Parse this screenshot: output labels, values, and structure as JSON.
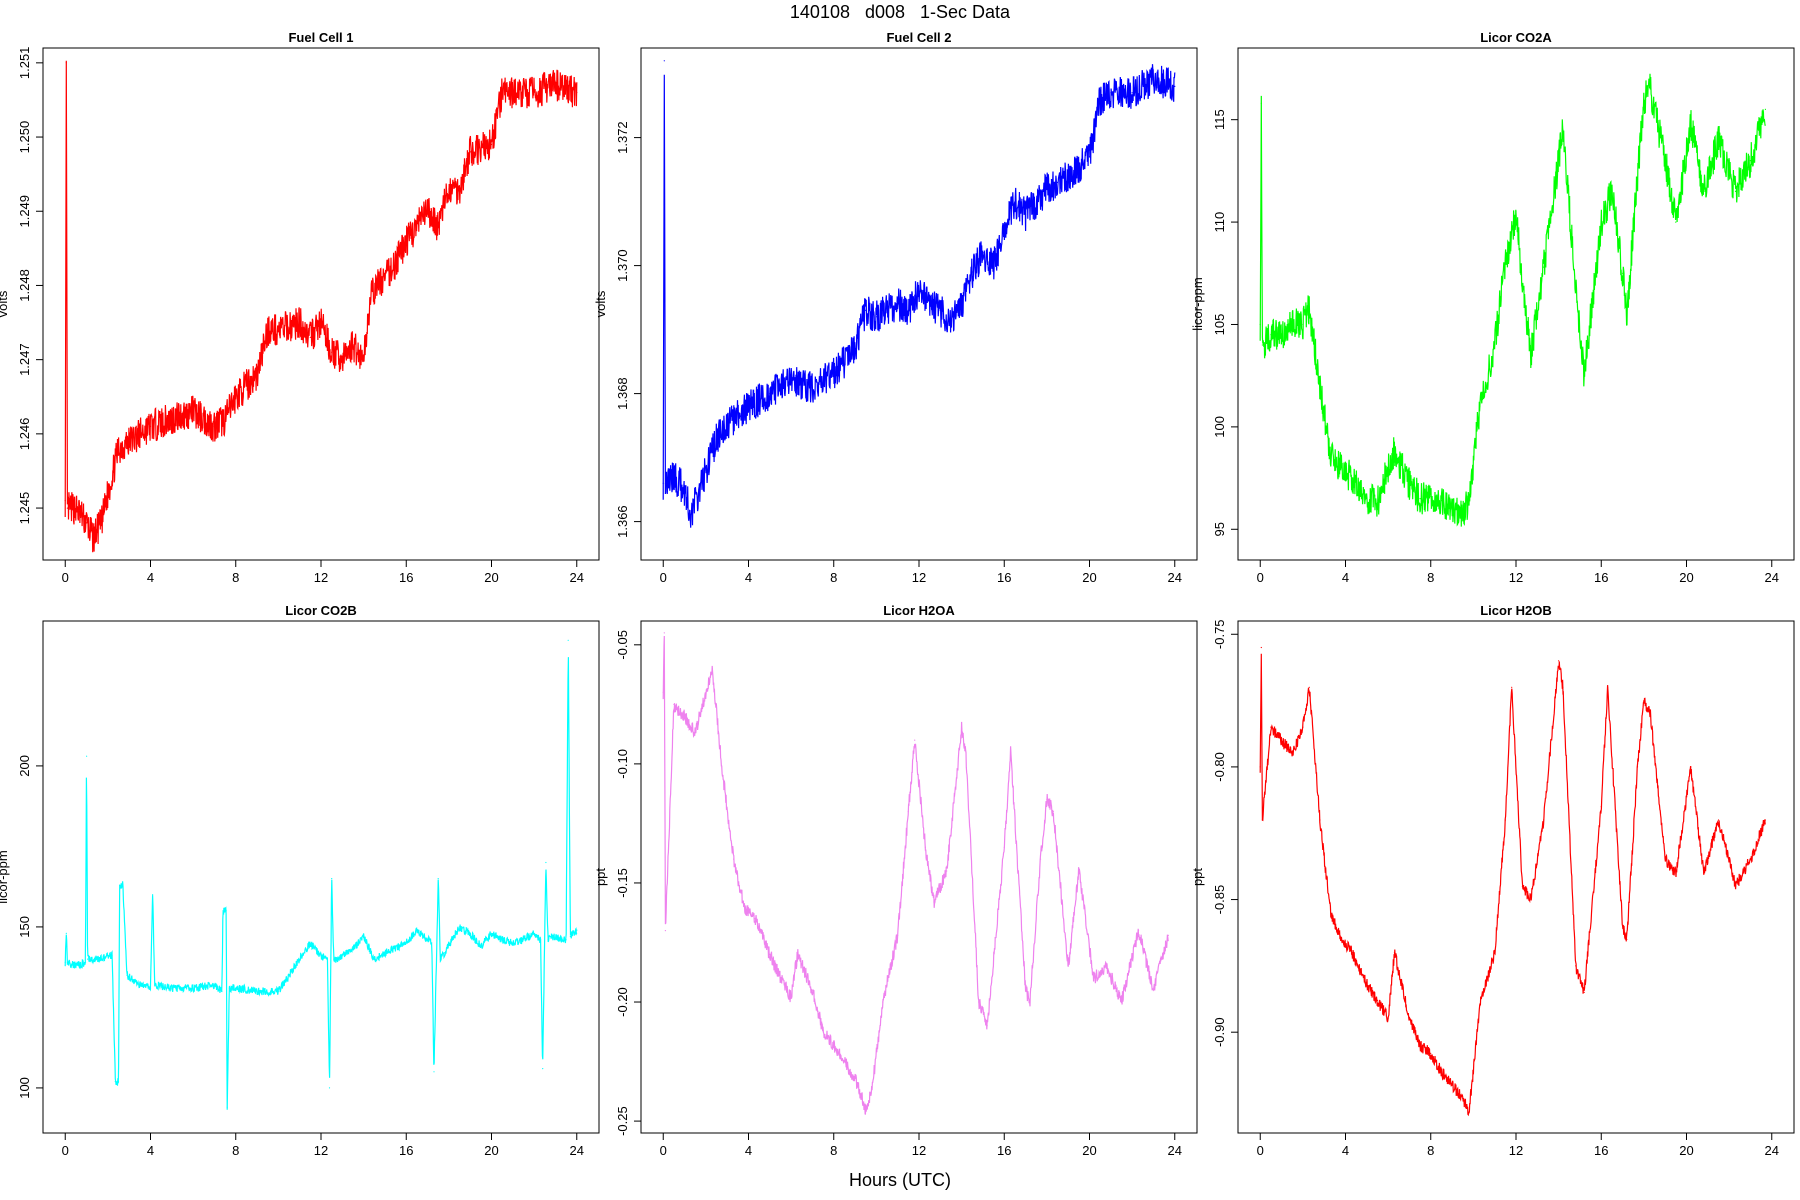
{
  "figure": {
    "title": "140108   d008   1-Sec Data",
    "xlabel": "Hours (UTC)"
  },
  "chart_data": [
    {
      "type": "line",
      "title": "Fuel Cell 1",
      "ylabel": "volts",
      "color": "#ff0000",
      "xlim": [
        0,
        24
      ],
      "ylim": [
        1.2443,
        1.2512
      ],
      "xticks": [
        0,
        4,
        8,
        12,
        16,
        20,
        24
      ],
      "yticks": [
        1.245,
        1.246,
        1.247,
        1.248,
        1.249,
        1.25,
        1.251
      ],
      "ytick_labels": [
        "1.245",
        "1.246",
        "1.247",
        "1.248",
        "1.249",
        "1.250",
        "1.251"
      ],
      "noise": 0.00022,
      "series": [
        {
          "x": [
            0,
            0.05,
            0.1,
            0.5,
            1,
            1.3,
            1.7,
            2,
            2.5,
            3,
            4,
            5,
            6,
            7,
            7.5,
            8,
            9,
            9.5,
            10,
            11,
            11.5,
            12,
            12.5,
            13,
            13.5,
            14,
            14.3,
            14.6,
            15,
            15.5,
            16,
            17,
            17.5,
            18,
            18.5,
            19,
            20,
            20.5,
            21,
            22,
            23,
            24
          ],
          "y": [
            1.2451,
            1.251,
            1.245,
            1.245,
            1.2448,
            1.2446,
            1.2448,
            1.2452,
            1.2458,
            1.2459,
            1.2461,
            1.2462,
            1.2463,
            1.2461,
            1.2462,
            1.2465,
            1.2468,
            1.2474,
            1.2474,
            1.2475,
            1.2473,
            1.2475,
            1.2471,
            1.247,
            1.2472,
            1.247,
            1.2478,
            1.248,
            1.2481,
            1.2483,
            1.2486,
            1.249,
            1.2488,
            1.2493,
            1.2493,
            1.2498,
            1.2499,
            1.2506,
            1.2506,
            1.2506,
            1.2507,
            1.2506
          ]
        }
      ]
    },
    {
      "type": "line",
      "title": "Fuel Cell 2",
      "ylabel": "volts",
      "color": "#0000ff",
      "xlim": [
        0,
        24
      ],
      "ylim": [
        1.3654,
        1.3734
      ],
      "xticks": [
        0,
        4,
        8,
        12,
        16,
        20,
        24
      ],
      "yticks": [
        1.366,
        1.368,
        1.37,
        1.372
      ],
      "ytick_labels": [
        "1.366",
        "1.368",
        "1.370",
        "1.372"
      ],
      "noise": 0.00026,
      "series": [
        {
          "x": [
            0,
            0.05,
            0.1,
            0.5,
            1,
            1.3,
            1.7,
            2,
            2.5,
            3,
            4,
            5,
            6,
            7,
            8,
            9,
            9.5,
            10,
            11,
            11.5,
            12,
            12.5,
            13,
            13.5,
            14,
            14.5,
            15,
            15.5,
            16,
            16.5,
            17,
            18,
            18.5,
            19,
            20,
            20.5,
            21,
            22,
            23,
            24
          ],
          "y": [
            1.3666,
            1.3732,
            1.3666,
            1.3667,
            1.3665,
            1.3661,
            1.3665,
            1.3668,
            1.3673,
            1.3675,
            1.3678,
            1.368,
            1.3682,
            1.3681,
            1.3683,
            1.3687,
            1.3693,
            1.3692,
            1.3694,
            1.3693,
            1.3696,
            1.3694,
            1.3693,
            1.3691,
            1.3694,
            1.3699,
            1.3702,
            1.37,
            1.3706,
            1.371,
            1.3708,
            1.3712,
            1.3713,
            1.3714,
            1.3717,
            1.3726,
            1.3727,
            1.3727,
            1.3729,
            1.3728
          ]
        }
      ]
    },
    {
      "type": "line",
      "title": "Licor CO2A",
      "ylabel": "licor-ppm",
      "color": "#00ff00",
      "xlim": [
        0,
        24
      ],
      "ylim": [
        93.5,
        118.5
      ],
      "xticks": [
        0,
        4,
        8,
        12,
        16,
        20,
        24
      ],
      "yticks": [
        95,
        100,
        105,
        110,
        115
      ],
      "ytick_labels": [
        "95",
        "100",
        "105",
        "110",
        "115"
      ],
      "noise": 0.8,
      "series": [
        {
          "x": [
            0,
            0.05,
            0.1,
            0.5,
            1,
            1.5,
            2,
            2.3,
            2.8,
            3.3,
            3.8,
            4.3,
            5,
            5.5,
            6,
            6.3,
            7,
            7.5,
            8,
            8.5,
            9,
            9.5,
            9.8,
            10.3,
            11,
            11.5,
            12,
            12.3,
            12.7,
            13.3,
            14,
            14.2,
            14.8,
            15.2,
            16,
            16.5,
            17,
            17.2,
            17.6,
            18,
            18.3,
            19,
            19.5,
            20.2,
            20.8,
            21.5,
            22.3,
            23,
            23.7
          ],
          "y": [
            105,
            115.8,
            104,
            104.5,
            104.5,
            105,
            105,
            105.8,
            102,
            98.5,
            98,
            97.5,
            96.5,
            96.3,
            98,
            98.8,
            97.2,
            96.5,
            96.6,
            96.4,
            96,
            95.6,
            96.5,
            101,
            104,
            108,
            110.5,
            107,
            103.5,
            107.8,
            113,
            114.5,
            107,
            102.5,
            110,
            111.5,
            107.5,
            105.5,
            111,
            116,
            116.5,
            113,
            110,
            114.8,
            111.5,
            114,
            111.5,
            113,
            115.5
          ]
        }
      ]
    },
    {
      "type": "line",
      "title": "Licor CO2B",
      "ylabel": "licor-ppm",
      "color": "#00ffff",
      "xlim": [
        0,
        24
      ],
      "ylim": [
        86,
        245
      ],
      "xticks": [
        0,
        4,
        8,
        12,
        16,
        20,
        24
      ],
      "yticks": [
        100,
        150,
        200
      ],
      "ytick_labels": [
        "100",
        "150",
        "200"
      ],
      "noise": 1.2,
      "series": [
        {
          "x": [
            0,
            0.05,
            0.1,
            0.5,
            0.95,
            1.0,
            1.05,
            1.5,
            2.2,
            2.35,
            2.5,
            2.55,
            2.7,
            2.9,
            3.5,
            4.0,
            4.1,
            4.2,
            5,
            6,
            7,
            7.35,
            7.4,
            7.55,
            7.6,
            7.7,
            8,
            9,
            10,
            11,
            11.5,
            12,
            12.3,
            12.4,
            12.5,
            12.6,
            12.7,
            13.5,
            14,
            14.5,
            15,
            16,
            16.5,
            17.2,
            17.3,
            17.5,
            17.6,
            17.8,
            18.5,
            19,
            19.5,
            20,
            20.5,
            21,
            21.5,
            22,
            22.3,
            22.4,
            22.55,
            22.65,
            22.8,
            23.5,
            23.6,
            23.7,
            24
          ],
          "y": [
            139,
            148,
            139,
            138,
            139,
            203,
            140,
            140,
            141,
            102,
            102,
            163,
            163,
            135,
            132,
            131,
            160,
            132,
            131,
            131,
            132,
            130,
            155,
            155,
            94,
            131,
            131,
            130,
            130,
            140,
            145,
            141,
            140,
            100,
            165,
            140,
            140,
            143,
            147,
            140,
            142,
            145,
            149,
            145,
            105,
            165,
            140,
            142,
            150,
            148,
            144,
            148,
            146,
            145,
            146,
            148,
            146,
            106,
            170,
            146,
            147,
            146,
            239,
            147,
            149
          ]
        }
      ]
    },
    {
      "type": "line",
      "title": "Licor H2OA",
      "ylabel": "ppt",
      "color": "#ee82ee",
      "xlim": [
        0,
        24
      ],
      "ylim": [
        -0.255,
        -0.04
      ],
      "xticks": [
        0,
        4,
        8,
        12,
        16,
        20,
        24
      ],
      "yticks": [
        -0.25,
        -0.2,
        -0.15,
        -0.1,
        -0.05
      ],
      "ytick_labels": [
        "-0.25",
        "-0.20",
        "-0.15",
        "-0.10",
        "-0.05"
      ],
      "noise": 0.0028,
      "series": [
        {
          "x": [
            0,
            0.05,
            0.1,
            0.5,
            1,
            1.5,
            2,
            2.3,
            2.8,
            3.3,
            3.8,
            4.3,
            5,
            5.5,
            6,
            6.3,
            7,
            7.5,
            8,
            8.5,
            9,
            9.5,
            9.8,
            10.3,
            11,
            11.5,
            11.8,
            12.3,
            12.7,
            13.3,
            14,
            14.2,
            14.8,
            15.2,
            16,
            16.3,
            17,
            17.2,
            17.7,
            18,
            18.3,
            19,
            19.5,
            20.2,
            20.8,
            21.5,
            22.3,
            23,
            23.7
          ],
          "y": [
            -0.07,
            -0.045,
            -0.17,
            -0.075,
            -0.08,
            -0.087,
            -0.07,
            -0.06,
            -0.105,
            -0.14,
            -0.16,
            -0.165,
            -0.18,
            -0.19,
            -0.198,
            -0.18,
            -0.195,
            -0.212,
            -0.218,
            -0.225,
            -0.232,
            -0.245,
            -0.236,
            -0.2,
            -0.172,
            -0.12,
            -0.09,
            -0.135,
            -0.158,
            -0.145,
            -0.085,
            -0.095,
            -0.2,
            -0.21,
            -0.135,
            -0.095,
            -0.195,
            -0.2,
            -0.14,
            -0.115,
            -0.12,
            -0.185,
            -0.145,
            -0.19,
            -0.185,
            -0.2,
            -0.17,
            -0.195,
            -0.172
          ]
        }
      ]
    },
    {
      "type": "line",
      "title": "Licor H2OB",
      "ylabel": "ppt",
      "color": "#ff0000",
      "xlim": [
        0,
        24
      ],
      "ylim": [
        -0.938,
        -0.745
      ],
      "xticks": [
        0,
        4,
        8,
        12,
        16,
        20,
        24
      ],
      "yticks": [
        -0.9,
        -0.85,
        -0.8,
        -0.75
      ],
      "ytick_labels": [
        "-0.90",
        "-0.85",
        "-0.80",
        "-0.75"
      ],
      "noise": 0.0022,
      "series": [
        {
          "x": [
            0,
            0.05,
            0.1,
            0.5,
            1,
            1.5,
            2,
            2.3,
            2.8,
            3.3,
            3.8,
            4.3,
            5,
            5.5,
            6,
            6.3,
            7,
            7.5,
            8,
            8.5,
            9,
            9.5,
            9.8,
            10.3,
            11,
            11.5,
            11.8,
            12.3,
            12.7,
            13.3,
            14,
            14.2,
            14.8,
            15.2,
            16,
            16.3,
            17,
            17.2,
            17.7,
            18,
            18.3,
            19,
            19.5,
            20.2,
            20.8,
            21.5,
            22.3,
            23,
            23.7
          ],
          "y": [
            -0.8,
            -0.755,
            -0.82,
            -0.785,
            -0.79,
            -0.795,
            -0.785,
            -0.77,
            -0.82,
            -0.855,
            -0.865,
            -0.87,
            -0.882,
            -0.888,
            -0.895,
            -0.87,
            -0.895,
            -0.905,
            -0.908,
            -0.915,
            -0.92,
            -0.925,
            -0.93,
            -0.89,
            -0.87,
            -0.82,
            -0.77,
            -0.845,
            -0.85,
            -0.82,
            -0.76,
            -0.77,
            -0.875,
            -0.885,
            -0.815,
            -0.77,
            -0.86,
            -0.865,
            -0.8,
            -0.775,
            -0.78,
            -0.835,
            -0.84,
            -0.8,
            -0.84,
            -0.82,
            -0.845,
            -0.835,
            -0.82
          ]
        }
      ]
    }
  ]
}
